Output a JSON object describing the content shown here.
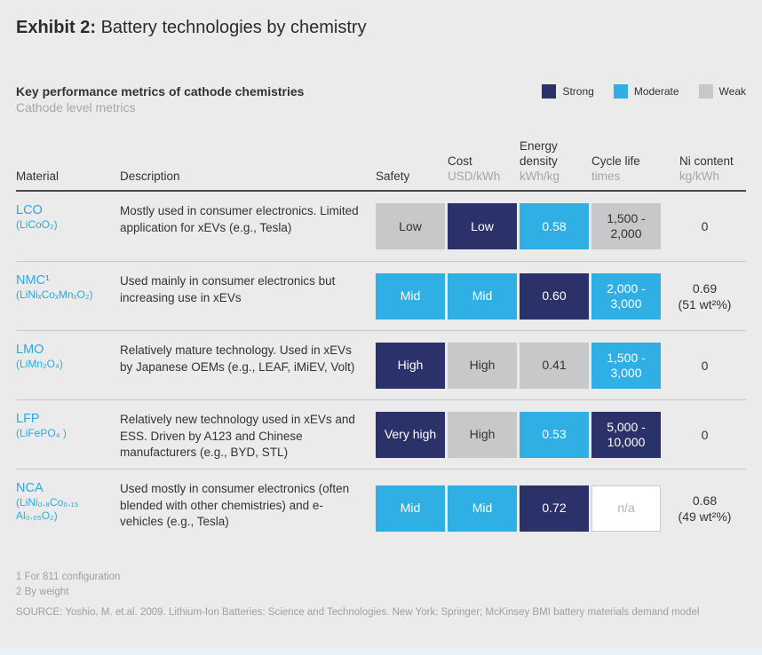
{
  "page": {
    "exhibit_prefix": "Exhibit 2:",
    "exhibit_title": " Battery technologies by chemistry"
  },
  "chart_data": {
    "type": "table",
    "title": "Key performance metrics of cathode chemistries",
    "subtitle": "Cathode level metrics",
    "legend": [
      {
        "label": "Strong",
        "color": "#2b3169"
      },
      {
        "label": "Moderate",
        "color": "#2fafe4"
      },
      {
        "label": "Weak",
        "color": "#c8c8cb"
      }
    ],
    "columns": [
      {
        "label": "Material",
        "unit": ""
      },
      {
        "label": "Description",
        "unit": ""
      },
      {
        "label": "Safety",
        "unit": ""
      },
      {
        "label": "Cost",
        "unit": "USD/kWh"
      },
      {
        "label": "Energy density",
        "unit": "kWh/kg"
      },
      {
        "label": "Cycle life",
        "unit": "times"
      },
      {
        "label": "Ni content",
        "unit": "kg/kWh"
      }
    ],
    "rows": [
      {
        "material": "LCO",
        "formula": "(LiCoO₂)",
        "description": "Mostly used in consumer electronics. Limited application for xEVs (e.g., Tesla)",
        "safety": {
          "text": "Low",
          "rating": "weak"
        },
        "cost": {
          "text": "Low",
          "rating": "strong"
        },
        "energy_density": {
          "text": "0.58",
          "rating": "moderate"
        },
        "cycle_life": {
          "text": "1,500 -\n2,000",
          "rating": "weak"
        },
        "ni_content": "0"
      },
      {
        "material": "NMC¹",
        "formula": "(LiNiₓCoₓMnₓO₂)",
        "description": "Used mainly in consumer electronics but increasing use in xEVs",
        "safety": {
          "text": "Mid",
          "rating": "moderate"
        },
        "cost": {
          "text": "Mid",
          "rating": "moderate"
        },
        "energy_density": {
          "text": "0.60",
          "rating": "strong"
        },
        "cycle_life": {
          "text": "2,000 -\n3,000",
          "rating": "moderate"
        },
        "ni_content": "0.69\n(51 wt²%)"
      },
      {
        "material": "LMO",
        "formula": "(LiMn₂O₄)",
        "description": "Relatively mature technology. Used in xEVs by Japanese OEMs (e.g., LEAF, iMiEV, Volt)",
        "safety": {
          "text": "High",
          "rating": "strong"
        },
        "cost": {
          "text": "High",
          "rating": "weak"
        },
        "energy_density": {
          "text": "0.41",
          "rating": "weak"
        },
        "cycle_life": {
          "text": "1,500 -\n3,000",
          "rating": "moderate"
        },
        "ni_content": "0"
      },
      {
        "material": "LFP",
        "formula": "(LiFePO₄ )",
        "description": "Relatively new technology used in xEVs and ESS. Driven by A123 and Chinese manufacturers (e.g., BYD, STL)",
        "safety": {
          "text": "Very high",
          "rating": "strong"
        },
        "cost": {
          "text": "High",
          "rating": "weak"
        },
        "energy_density": {
          "text": "0.53",
          "rating": "moderate"
        },
        "cycle_life": {
          "text": "5,000 -\n10,000",
          "rating": "strong"
        },
        "ni_content": "0"
      },
      {
        "material": "NCA",
        "formula": "(LiNi₀.₈Co₀.₁₅\nAl₀.₀₅O₂)",
        "description": "Used mostly in consumer electronics (often blended with other chemistries) and e-vehicles (e.g., Tesla)",
        "safety": {
          "text": "Mid",
          "rating": "moderate"
        },
        "cost": {
          "text": "Mid",
          "rating": "moderate"
        },
        "energy_density": {
          "text": "0.72",
          "rating": "strong"
        },
        "cycle_life": {
          "text": "n/a",
          "rating": "na"
        },
        "ni_content": "0.68\n(49 wt²%)"
      }
    ]
  },
  "footnotes": [
    "1 For 811 configuration",
    "2 By weight"
  ],
  "source": "SOURCE: Yoshio, M. et.al. 2009. Lithium-Ion Batteries: Science and Technologies. New York: Springer; McKinsey BMI battery materials demand model"
}
